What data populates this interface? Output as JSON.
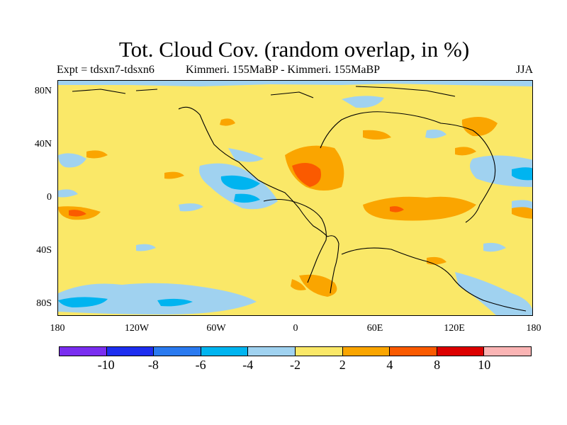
{
  "title": "Tot. Cloud Cov. (random overlap, in %)",
  "subtitle_left": "Expt = tdsxn7-tdsxn6",
  "subtitle_center": "Kimmeri. 155MaBP - Kimmeri. 155MaBP",
  "subtitle_right": "JJA",
  "lat_labels": [
    "80N",
    "40N",
    "0",
    "40S",
    "80S"
  ],
  "lon_labels": [
    "180",
    "120W",
    "60W",
    "0",
    "60E",
    "120E",
    "180"
  ],
  "colorbar": {
    "colors": [
      "#7A2EF0",
      "#1E2EF0",
      "#2A7AF0",
      "#00B4F0",
      "#A0D2F0",
      "#FAE868",
      "#FAA500",
      "#FA5A00",
      "#DC0000",
      "#FAB4B4"
    ],
    "labels": [
      "-10",
      "-8",
      "-6",
      "-4",
      "-2",
      "2",
      "4",
      "8",
      "10"
    ]
  },
  "map_colors": {
    "background": "#FAE868",
    "light_blue": "#A0D2F0",
    "blue": "#00B4F0",
    "orange": "#FAA500",
    "dark_orange": "#FA5A00"
  }
}
